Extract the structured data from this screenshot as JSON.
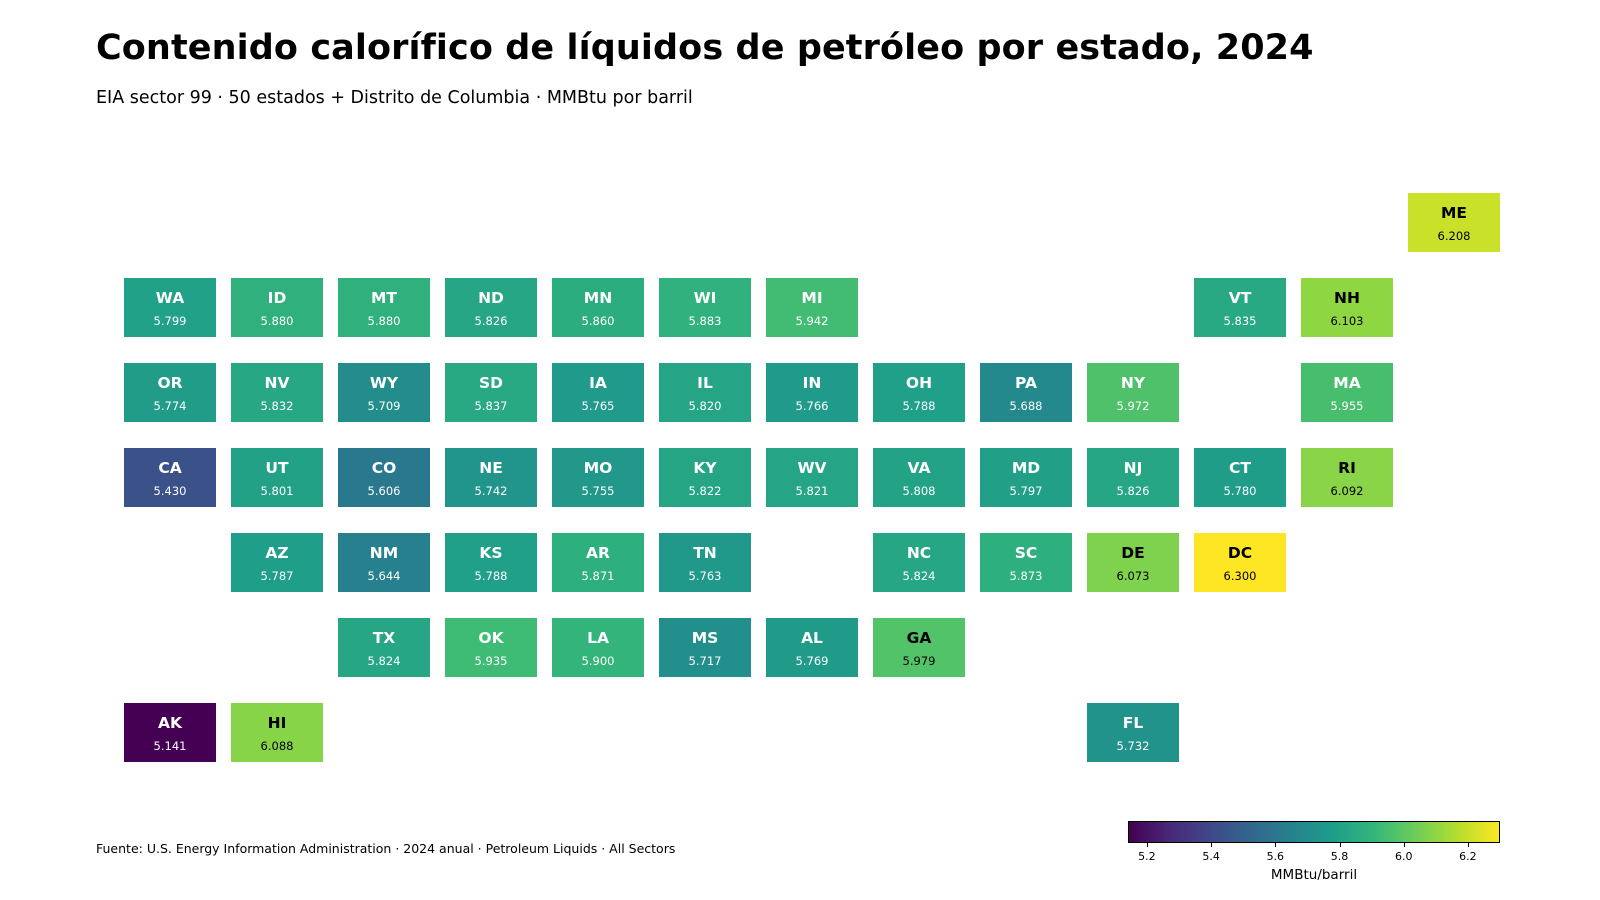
{
  "chart_data": {
    "type": "heatmap",
    "title": "Contenido calorífico de líquidos de petróleo por estado, 2024",
    "subtitle": "EIA sector 99 · 50 estados + Distrito de Columbia · MMBtu por barril",
    "source": "Fuente: U.S. Energy Information Administration · 2024 anual · Petroleum Liquids · All Sectors",
    "colorbar": {
      "label": "MMBtu/barril",
      "range": [
        5.141,
        6.3
      ],
      "ticks": [
        "5.2",
        "5.4",
        "5.6",
        "5.8",
        "6.0",
        "6.2"
      ],
      "colormap": "viridis"
    },
    "tiles": [
      {
        "state": "ME",
        "value": "6.208",
        "col": 12,
        "row": 0
      },
      {
        "state": "WA",
        "value": "5.799",
        "col": 0,
        "row": 1
      },
      {
        "state": "ID",
        "value": "5.880",
        "col": 1,
        "row": 1
      },
      {
        "state": "MT",
        "value": "5.880",
        "col": 2,
        "row": 1
      },
      {
        "state": "ND",
        "value": "5.826",
        "col": 3,
        "row": 1
      },
      {
        "state": "MN",
        "value": "5.860",
        "col": 4,
        "row": 1
      },
      {
        "state": "WI",
        "value": "5.883",
        "col": 5,
        "row": 1
      },
      {
        "state": "MI",
        "value": "5.942",
        "col": 6,
        "row": 1
      },
      {
        "state": "VT",
        "value": "5.835",
        "col": 10,
        "row": 1
      },
      {
        "state": "NH",
        "value": "6.103",
        "col": 11,
        "row": 1
      },
      {
        "state": "OR",
        "value": "5.774",
        "col": 0,
        "row": 2
      },
      {
        "state": "NV",
        "value": "5.832",
        "col": 1,
        "row": 2
      },
      {
        "state": "WY",
        "value": "5.709",
        "col": 2,
        "row": 2
      },
      {
        "state": "SD",
        "value": "5.837",
        "col": 3,
        "row": 2
      },
      {
        "state": "IA",
        "value": "5.765",
        "col": 4,
        "row": 2
      },
      {
        "state": "IL",
        "value": "5.820",
        "col": 5,
        "row": 2
      },
      {
        "state": "IN",
        "value": "5.766",
        "col": 6,
        "row": 2
      },
      {
        "state": "OH",
        "value": "5.788",
        "col": 7,
        "row": 2
      },
      {
        "state": "PA",
        "value": "5.688",
        "col": 8,
        "row": 2
      },
      {
        "state": "NY",
        "value": "5.972",
        "col": 9,
        "row": 2
      },
      {
        "state": "MA",
        "value": "5.955",
        "col": 11,
        "row": 2
      },
      {
        "state": "CA",
        "value": "5.430",
        "col": 0,
        "row": 3
      },
      {
        "state": "UT",
        "value": "5.801",
        "col": 1,
        "row": 3
      },
      {
        "state": "CO",
        "value": "5.606",
        "col": 2,
        "row": 3
      },
      {
        "state": "NE",
        "value": "5.742",
        "col": 3,
        "row": 3
      },
      {
        "state": "MO",
        "value": "5.755",
        "col": 4,
        "row": 3
      },
      {
        "state": "KY",
        "value": "5.822",
        "col": 5,
        "row": 3
      },
      {
        "state": "WV",
        "value": "5.821",
        "col": 6,
        "row": 3
      },
      {
        "state": "VA",
        "value": "5.808",
        "col": 7,
        "row": 3
      },
      {
        "state": "MD",
        "value": "5.797",
        "col": 8,
        "row": 3
      },
      {
        "state": "NJ",
        "value": "5.826",
        "col": 9,
        "row": 3
      },
      {
        "state": "CT",
        "value": "5.780",
        "col": 10,
        "row": 3
      },
      {
        "state": "RI",
        "value": "6.092",
        "col": 11,
        "row": 3
      },
      {
        "state": "AZ",
        "value": "5.787",
        "col": 1,
        "row": 4
      },
      {
        "state": "NM",
        "value": "5.644",
        "col": 2,
        "row": 4
      },
      {
        "state": "KS",
        "value": "5.788",
        "col": 3,
        "row": 4
      },
      {
        "state": "AR",
        "value": "5.871",
        "col": 4,
        "row": 4
      },
      {
        "state": "TN",
        "value": "5.763",
        "col": 5,
        "row": 4
      },
      {
        "state": "NC",
        "value": "5.824",
        "col": 7,
        "row": 4
      },
      {
        "state": "SC",
        "value": "5.873",
        "col": 8,
        "row": 4
      },
      {
        "state": "DE",
        "value": "6.073",
        "col": 9,
        "row": 4
      },
      {
        "state": "DC",
        "value": "6.300",
        "col": 10,
        "row": 4
      },
      {
        "state": "TX",
        "value": "5.824",
        "col": 2,
        "row": 5
      },
      {
        "state": "OK",
        "value": "5.935",
        "col": 3,
        "row": 5
      },
      {
        "state": "LA",
        "value": "5.900",
        "col": 4,
        "row": 5
      },
      {
        "state": "MS",
        "value": "5.717",
        "col": 5,
        "row": 5
      },
      {
        "state": "AL",
        "value": "5.769",
        "col": 6,
        "row": 5
      },
      {
        "state": "GA",
        "value": "5.979",
        "col": 7,
        "row": 5
      },
      {
        "state": "AK",
        "value": "5.141",
        "col": 0,
        "row": 6
      },
      {
        "state": "HI",
        "value": "6.088",
        "col": 1,
        "row": 6
      },
      {
        "state": "FL",
        "value": "5.732",
        "col": 9,
        "row": 6
      }
    ]
  }
}
